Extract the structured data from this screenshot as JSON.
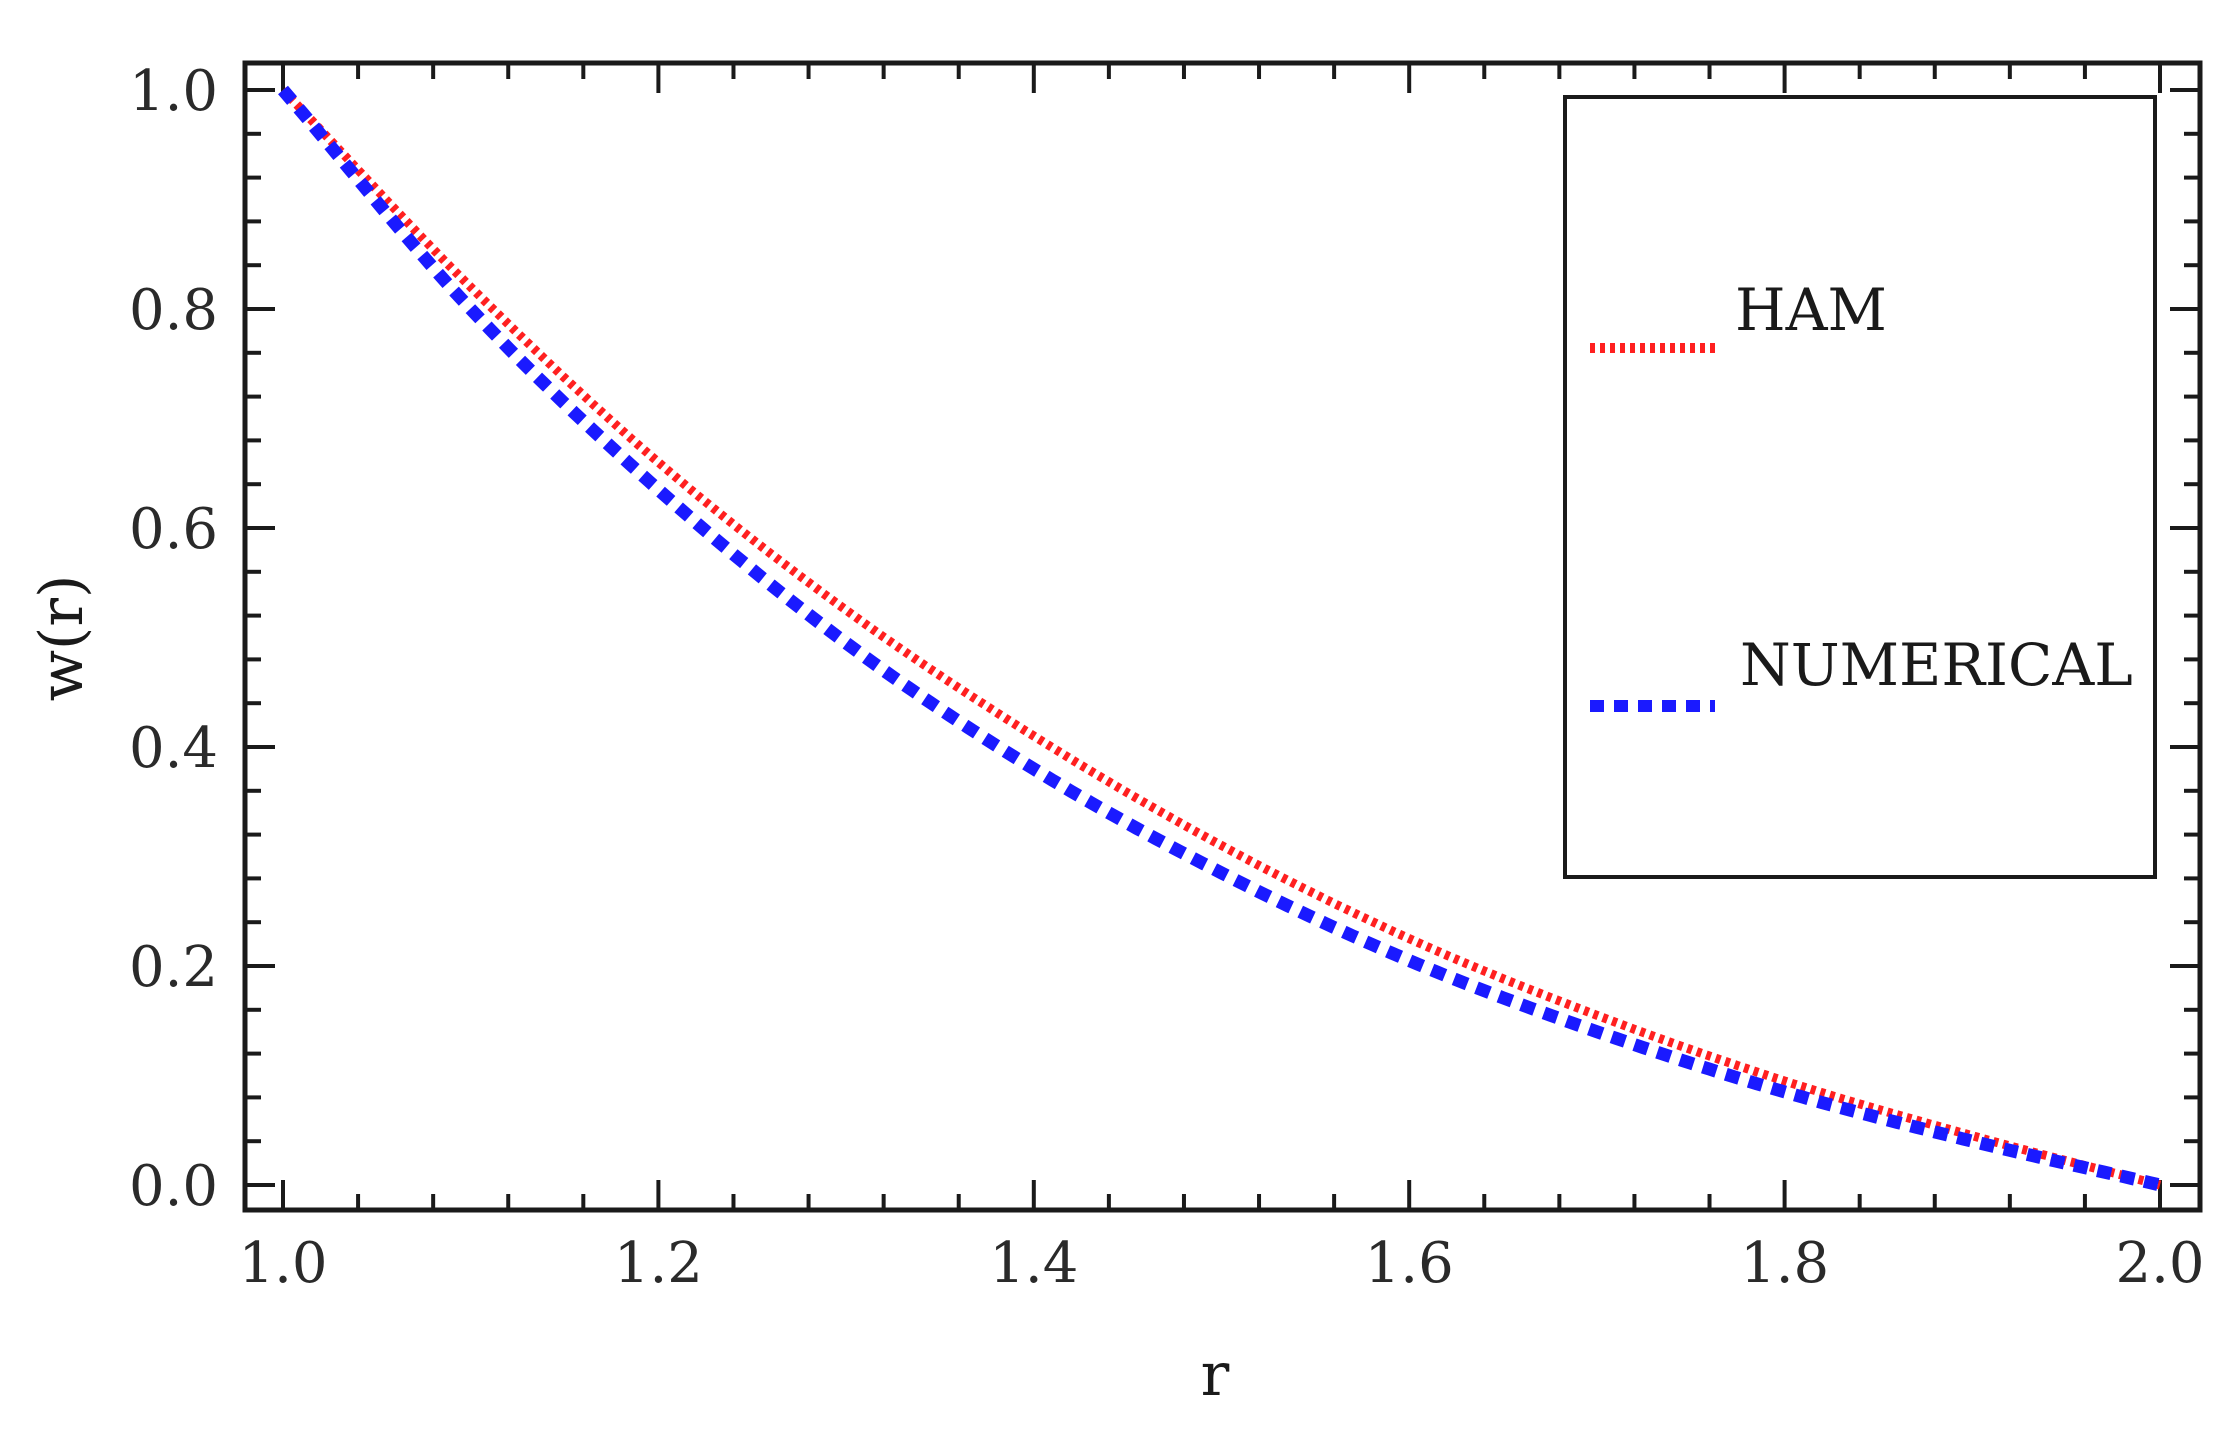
{
  "chart_data": {
    "type": "line",
    "xlabel": "r",
    "ylabel": "w(r)",
    "xlim": [
      1.0,
      2.0
    ],
    "ylim": [
      0.0,
      1.0
    ],
    "x_ticks": [
      "1.0",
      "1.2",
      "1.4",
      "1.6",
      "1.8",
      "2.0"
    ],
    "y_ticks": [
      "0.0",
      "0.2",
      "0.4",
      "0.6",
      "0.8",
      "1.0"
    ],
    "grid": false,
    "legend_position": "top-right",
    "x": [
      1.0,
      1.1,
      1.2,
      1.3,
      1.4,
      1.5,
      1.6,
      1.7,
      1.8,
      1.9,
      2.0
    ],
    "series": [
      {
        "name": "HAM",
        "color": "#ff2020",
        "style": "dotted",
        "values": [
          1.0,
          0.82,
          0.66,
          0.525,
          0.41,
          0.31,
          0.225,
          0.155,
          0.095,
          0.045,
          0.0
        ]
      },
      {
        "name": "NUMERICAL",
        "color": "#1a1aff",
        "style": "dashed",
        "values": [
          1.0,
          0.8,
          0.635,
          0.495,
          0.38,
          0.285,
          0.205,
          0.14,
          0.085,
          0.04,
          0.0
        ]
      }
    ]
  }
}
